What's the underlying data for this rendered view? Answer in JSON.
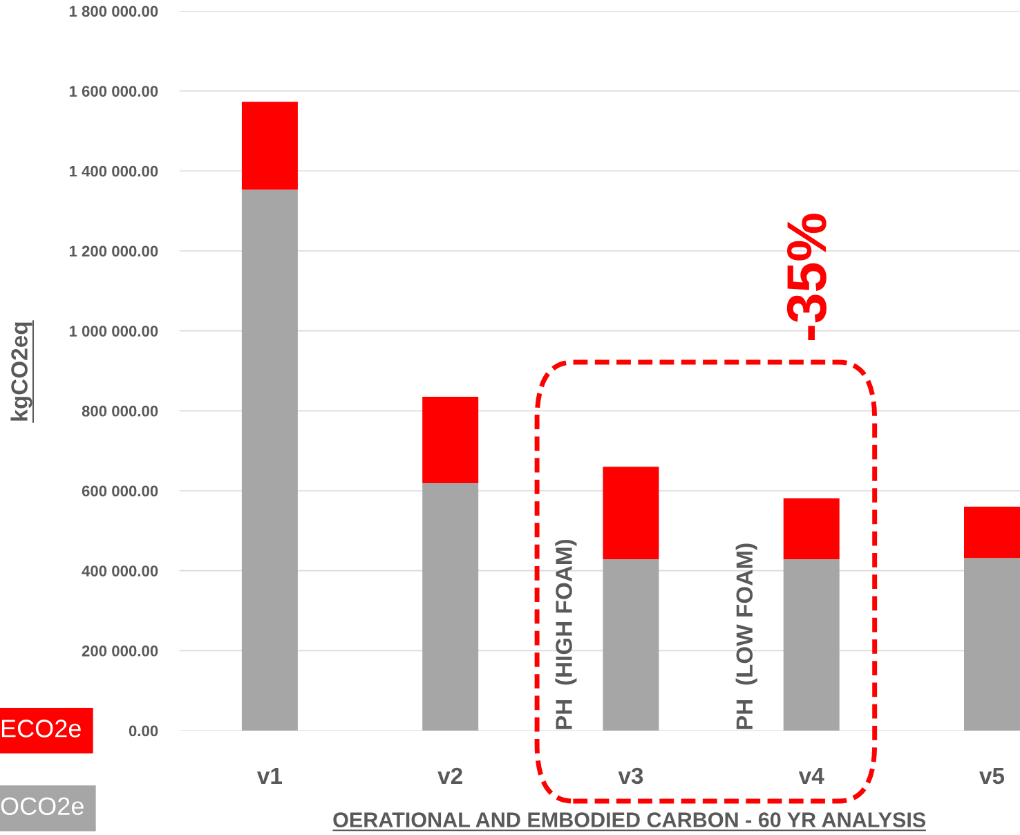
{
  "chart_data": {
    "type": "bar",
    "stacked": true,
    "xlabel": "OERATIONAL AND EMBODIED CARBON - 60 YR ANALYSIS",
    "ylabel": "kgCO2eq",
    "categories": [
      "v1",
      "v2",
      "v3",
      "v4",
      "v5"
    ],
    "series": [
      {
        "name": "OCO2e",
        "color": "#a6a6a6",
        "values": [
          1353000,
          619000,
          429000,
          429000,
          432000
        ]
      },
      {
        "name": "ECO2e",
        "color": "#ff0000",
        "values": [
          220000,
          216000,
          231000,
          152000,
          128000
        ]
      }
    ],
    "ylim": [
      0,
      1800000
    ],
    "yticks": [
      {
        "value": 0,
        "label": "0.00"
      },
      {
        "value": 200000,
        "label": "200 000.00"
      },
      {
        "value": 400000,
        "label": "400 000.00"
      },
      {
        "value": 600000,
        "label": "600 000.00"
      },
      {
        "value": 800000,
        "label": "800 000.00"
      },
      {
        "value": 1000000,
        "label": "1 000 000.00"
      },
      {
        "value": 1200000,
        "label": "1 200 000.00"
      },
      {
        "value": 1400000,
        "label": "1 400 000.00"
      },
      {
        "value": 1600000,
        "label": "1 600 000.00"
      },
      {
        "value": 1800000,
        "label": "1 800 000.00"
      }
    ],
    "grid": "y",
    "legend": "bottom left",
    "annotations": [
      "PH  (HIGH FOAM)",
      "PH  (LOW FOAM)",
      "-35%"
    ]
  }
}
